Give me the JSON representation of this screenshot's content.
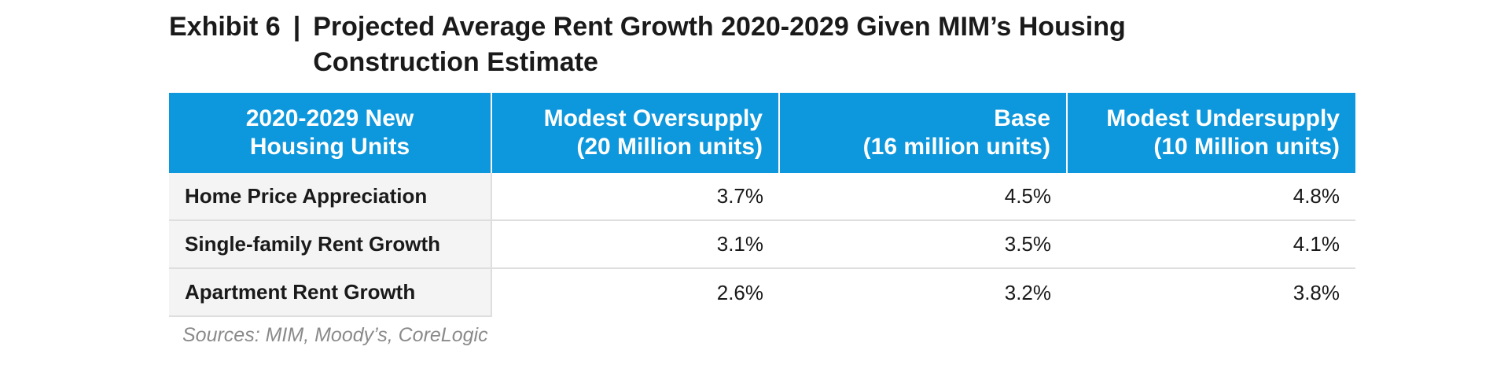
{
  "title": {
    "exhibit": "Exhibit 6",
    "separator": "|",
    "text": "Projected Average Rent Growth 2020-2029 Given MIM’s Housing Construction Estimate"
  },
  "table": {
    "headers": [
      [
        "2020-2029 New",
        "Housing Units"
      ],
      [
        "Modest Oversupply",
        "(20 Million units)"
      ],
      [
        "Base",
        "(16 million units)"
      ],
      [
        "Modest Undersupply",
        "(10 Million units)"
      ]
    ],
    "rows": [
      {
        "label": "Home Price Appreciation",
        "values": [
          "3.7%",
          "4.5%",
          "4.8%"
        ]
      },
      {
        "label": "Single-family Rent Growth",
        "values": [
          "3.1%",
          "3.5%",
          "4.1%"
        ]
      },
      {
        "label": "Apartment Rent Growth",
        "values": [
          "2.6%",
          "3.2%",
          "3.8%"
        ]
      }
    ]
  },
  "sources": "Sources: MIM, Moody’s, CoreLogic",
  "colors": {
    "header_bg": "#0d97dc",
    "label_bg": "#f4f4f4"
  }
}
